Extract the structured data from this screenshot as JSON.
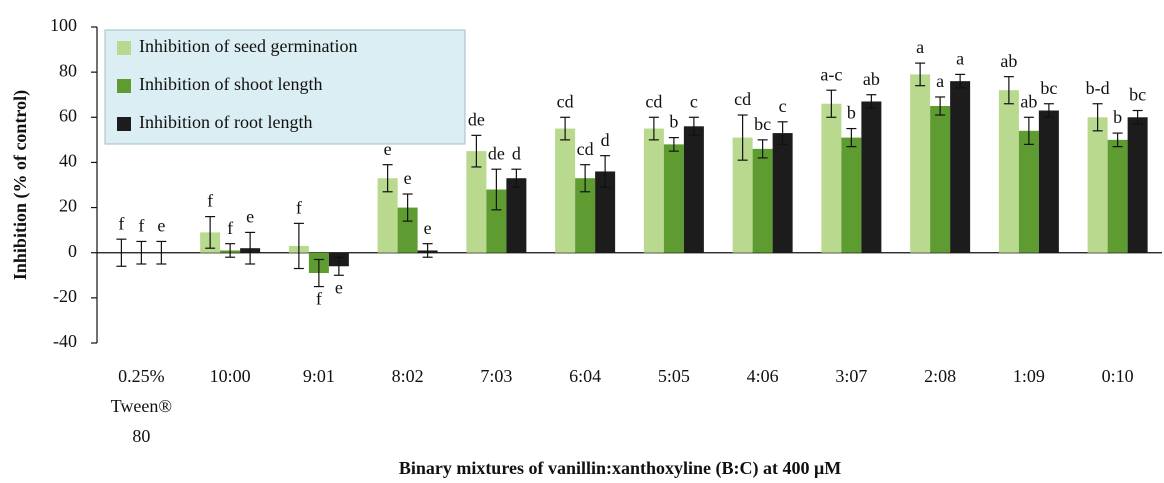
{
  "chart_data": {
    "type": "bar",
    "x_label": "Binary mixtures of vanillin:xanthoxyline (B:C) at 400 μM",
    "y_label": "Inhibition (% of control)",
    "categories": [
      "0.25% Tween® 80",
      "10:00",
      "9:01",
      "8:02",
      "7:03",
      "6:04",
      "5:05",
      "4:06",
      "3:07",
      "2:08",
      "1:09",
      "0:10"
    ],
    "ylim": [
      -40,
      100
    ],
    "yticks": [
      -40,
      -20,
      0,
      20,
      40,
      60,
      80,
      100
    ],
    "legend": "upper left",
    "series": [
      {
        "name": "Inhibition of seed germination",
        "color": "#b8d98e",
        "values": [
          0,
          9,
          3,
          33,
          45,
          55,
          55,
          51,
          66,
          79,
          72,
          60
        ],
        "errors": [
          6,
          7,
          10,
          6,
          7,
          5,
          5,
          10,
          6,
          5,
          6,
          6
        ],
        "letters": [
          "f",
          "f",
          "f",
          "e",
          "de",
          "cd",
          "cd",
          "cd",
          "a-c",
          "a",
          "ab",
          "b-d"
        ]
      },
      {
        "name": "Inhibition of shoot length",
        "color": "#5e9c32",
        "values": [
          0,
          1,
          -9,
          20,
          28,
          33,
          48,
          46,
          51,
          65,
          54,
          50
        ],
        "errors": [
          5,
          3,
          6,
          6,
          9,
          6,
          3,
          4,
          4,
          4,
          6,
          3
        ],
        "letters": [
          "f",
          "f",
          "f",
          "e",
          "de",
          "cd",
          "b",
          "bc",
          "b",
          "a",
          "ab",
          "b"
        ]
      },
      {
        "name": "Inhibition of root length",
        "color": "#1c1c1c",
        "values": [
          0,
          2,
          -6,
          1,
          33,
          36,
          56,
          53,
          67,
          76,
          63,
          60
        ],
        "errors": [
          5,
          7,
          4,
          3,
          4,
          7,
          4,
          5,
          3,
          3,
          3,
          3
        ],
        "letters": [
          "e",
          "e",
          "e",
          "e",
          "d",
          "d",
          "c",
          "c",
          "ab",
          "a",
          "bc",
          "bc"
        ]
      }
    ]
  }
}
